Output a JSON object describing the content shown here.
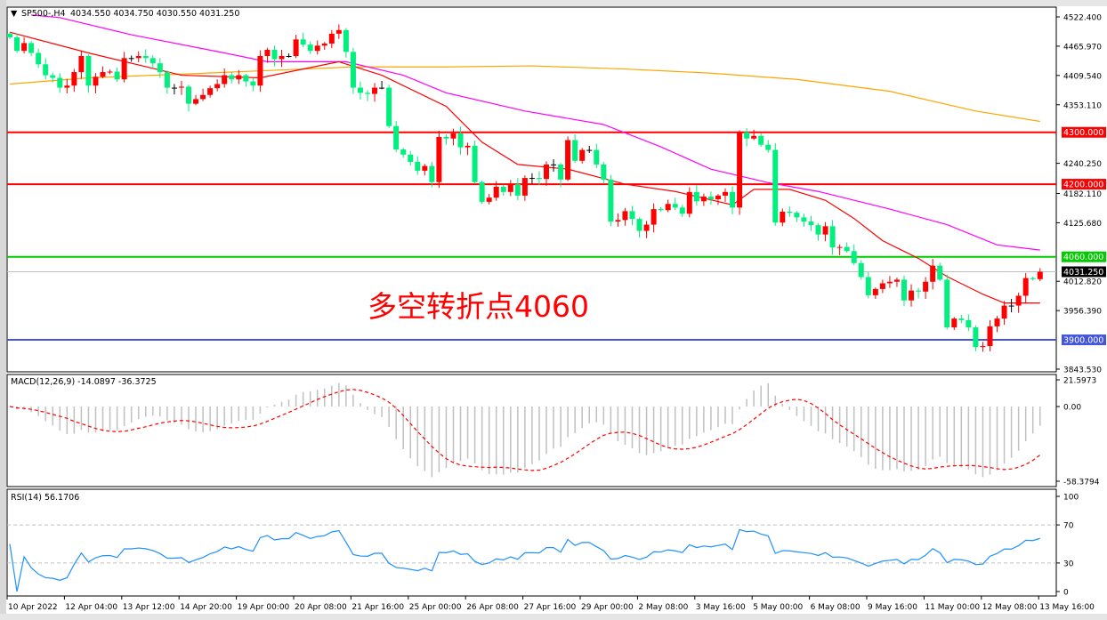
{
  "header": {
    "symbol": "SP500-,H4",
    "ohlc": "4034.550 4034.750 4030.550 4031.250"
  },
  "annotation": "多空转折点4060",
  "macd": {
    "label": "MACD(12,26,9) -14.0897 -36.3725",
    "ticks": [
      "21.5973",
      "0.00",
      "-58.3794"
    ],
    "tick_values": [
      21.5973,
      0,
      -58.3794
    ]
  },
  "rsi": {
    "label": "RSI(14) 56.1706",
    "ticks": [
      "100",
      "70",
      "30",
      "0"
    ],
    "tick_values": [
      100,
      70,
      30,
      0
    ]
  },
  "price_axis": {
    "ticks": [
      "4522.400",
      "4465.970",
      "4409.540",
      "4353.110",
      "4240.250",
      "4182.110",
      "4125.680",
      "4012.820",
      "3956.390",
      "3843.530"
    ],
    "tick_values": [
      4522.4,
      4465.97,
      4409.54,
      4353.11,
      4240.25,
      4182.11,
      4125.68,
      4012.82,
      3956.39,
      3843.53
    ]
  },
  "levels": [
    {
      "label": "4300.000",
      "price": 4300,
      "color": "#ff0000"
    },
    {
      "label": "4200.000",
      "price": 4200,
      "color": "#ff0000"
    },
    {
      "label": "4060.000",
      "price": 4060,
      "color": "#00cc00"
    },
    {
      "label": "3900.000",
      "price": 3900,
      "color": "#4455dd"
    }
  ],
  "current_price": {
    "label": "4031.250",
    "price": 4031.25,
    "color": "#000000"
  },
  "time_axis": [
    "10 Apr 2022",
    "12 Apr 04:00",
    "13 Apr 12:00",
    "14 Apr 20:00",
    "19 Apr 00:00",
    "20 Apr 08:00",
    "21 Apr 16:00",
    "25 Apr 00:00",
    "26 Apr 08:00",
    "27 Apr 16:00",
    "29 Apr 00:00",
    "2 May 08:00",
    "3 May 16:00",
    "5 May 00:00",
    "6 May 08:00",
    "9 May 16:00",
    "11 May 00:00",
    "12 May 08:00",
    "13 May 16:00"
  ],
  "chart_data": {
    "type": "candlestick",
    "timeframe": "H4",
    "ylim": [
      3843.53,
      4522.4
    ],
    "colors": {
      "up": "#ff0000",
      "down": "#00ef7f",
      "ma_fast": "#ff0000",
      "ma_mid": "#ff00ff",
      "ma_slow": "#ffa500"
    },
    "first_open": 4490,
    "closes": [
      4483,
      4457,
      4472,
      4453,
      4431,
      4410,
      4405,
      4386,
      4390,
      4416,
      4447,
      4390,
      4407,
      4416,
      4417,
      4402,
      4443,
      4443,
      4447,
      4443,
      4433,
      4416,
      4386,
      4386,
      4388,
      4355,
      4364,
      4372,
      4385,
      4393,
      4410,
      4402,
      4410,
      4398,
      4390,
      4447,
      4459,
      4441,
      4447,
      4447,
      4479,
      4469,
      4457,
      4467,
      4471,
      4490,
      4497,
      4455,
      4386,
      4376,
      4374,
      4386,
      4386,
      4312,
      4267,
      4257,
      4243,
      4226,
      4235,
      4204,
      4291,
      4288,
      4298,
      4271,
      4274,
      4204,
      4166,
      4174,
      4195,
      4185,
      4200,
      4178,
      4212,
      4212,
      4210,
      4238,
      4238,
      4209,
      4285,
      4245,
      4266,
      4266,
      4238,
      4209,
      4128,
      4131,
      4148,
      4133,
      4110,
      4122,
      4152,
      4150,
      4162,
      4155,
      4143,
      4185,
      4167,
      4176,
      4171,
      4178,
      4185,
      4155,
      4300,
      4288,
      4293,
      4276,
      4266,
      4126,
      4147,
      4145,
      4136,
      4128,
      4121,
      4103,
      4119,
      4078,
      4079,
      4071,
      4048,
      4021,
      3986,
      3998,
      4009,
      4012,
      4016,
      3976,
      3995,
      3993,
      4012,
      4043,
      4016,
      3924,
      3941,
      3938,
      3924,
      3886,
      3888,
      3926,
      3941,
      3966,
      3966,
      3985,
      4019,
      4017,
      4031.25
    ],
    "ma_fast": [
      [
        0,
        4493
      ],
      [
        11,
        4453
      ],
      [
        24,
        4410
      ],
      [
        35,
        4405
      ],
      [
        46,
        4436
      ],
      [
        52,
        4410
      ],
      [
        61,
        4350
      ],
      [
        66,
        4281
      ],
      [
        71,
        4238
      ],
      [
        78,
        4229
      ],
      [
        86,
        4200
      ],
      [
        93,
        4186
      ],
      [
        101,
        4160
      ],
      [
        104,
        4190
      ],
      [
        109,
        4190
      ],
      [
        114,
        4169
      ],
      [
        118,
        4134
      ],
      [
        122,
        4091
      ],
      [
        127,
        4057
      ],
      [
        131,
        4022
      ],
      [
        136,
        3988
      ],
      [
        139,
        3971
      ],
      [
        144,
        3971
      ]
    ],
    "ma_mid": [
      [
        3,
        4526
      ],
      [
        7,
        4521
      ],
      [
        17,
        4488
      ],
      [
        30,
        4453
      ],
      [
        36,
        4436
      ],
      [
        47,
        4436
      ],
      [
        55,
        4410
      ],
      [
        61,
        4376
      ],
      [
        72,
        4341
      ],
      [
        83,
        4315
      ],
      [
        91,
        4272
      ],
      [
        98,
        4229
      ],
      [
        106,
        4203
      ],
      [
        113,
        4186
      ],
      [
        123,
        4152
      ],
      [
        131,
        4122
      ],
      [
        138,
        4083
      ],
      [
        144,
        4073
      ]
    ],
    "ma_slow": [
      [
        0,
        4393
      ],
      [
        11,
        4405
      ],
      [
        24,
        4412
      ],
      [
        36,
        4419
      ],
      [
        48,
        4426
      ],
      [
        61,
        4426
      ],
      [
        73,
        4428
      ],
      [
        86,
        4422
      ],
      [
        98,
        4414
      ],
      [
        110,
        4402
      ],
      [
        123,
        4379
      ],
      [
        135,
        4341
      ],
      [
        144,
        4321
      ]
    ]
  }
}
